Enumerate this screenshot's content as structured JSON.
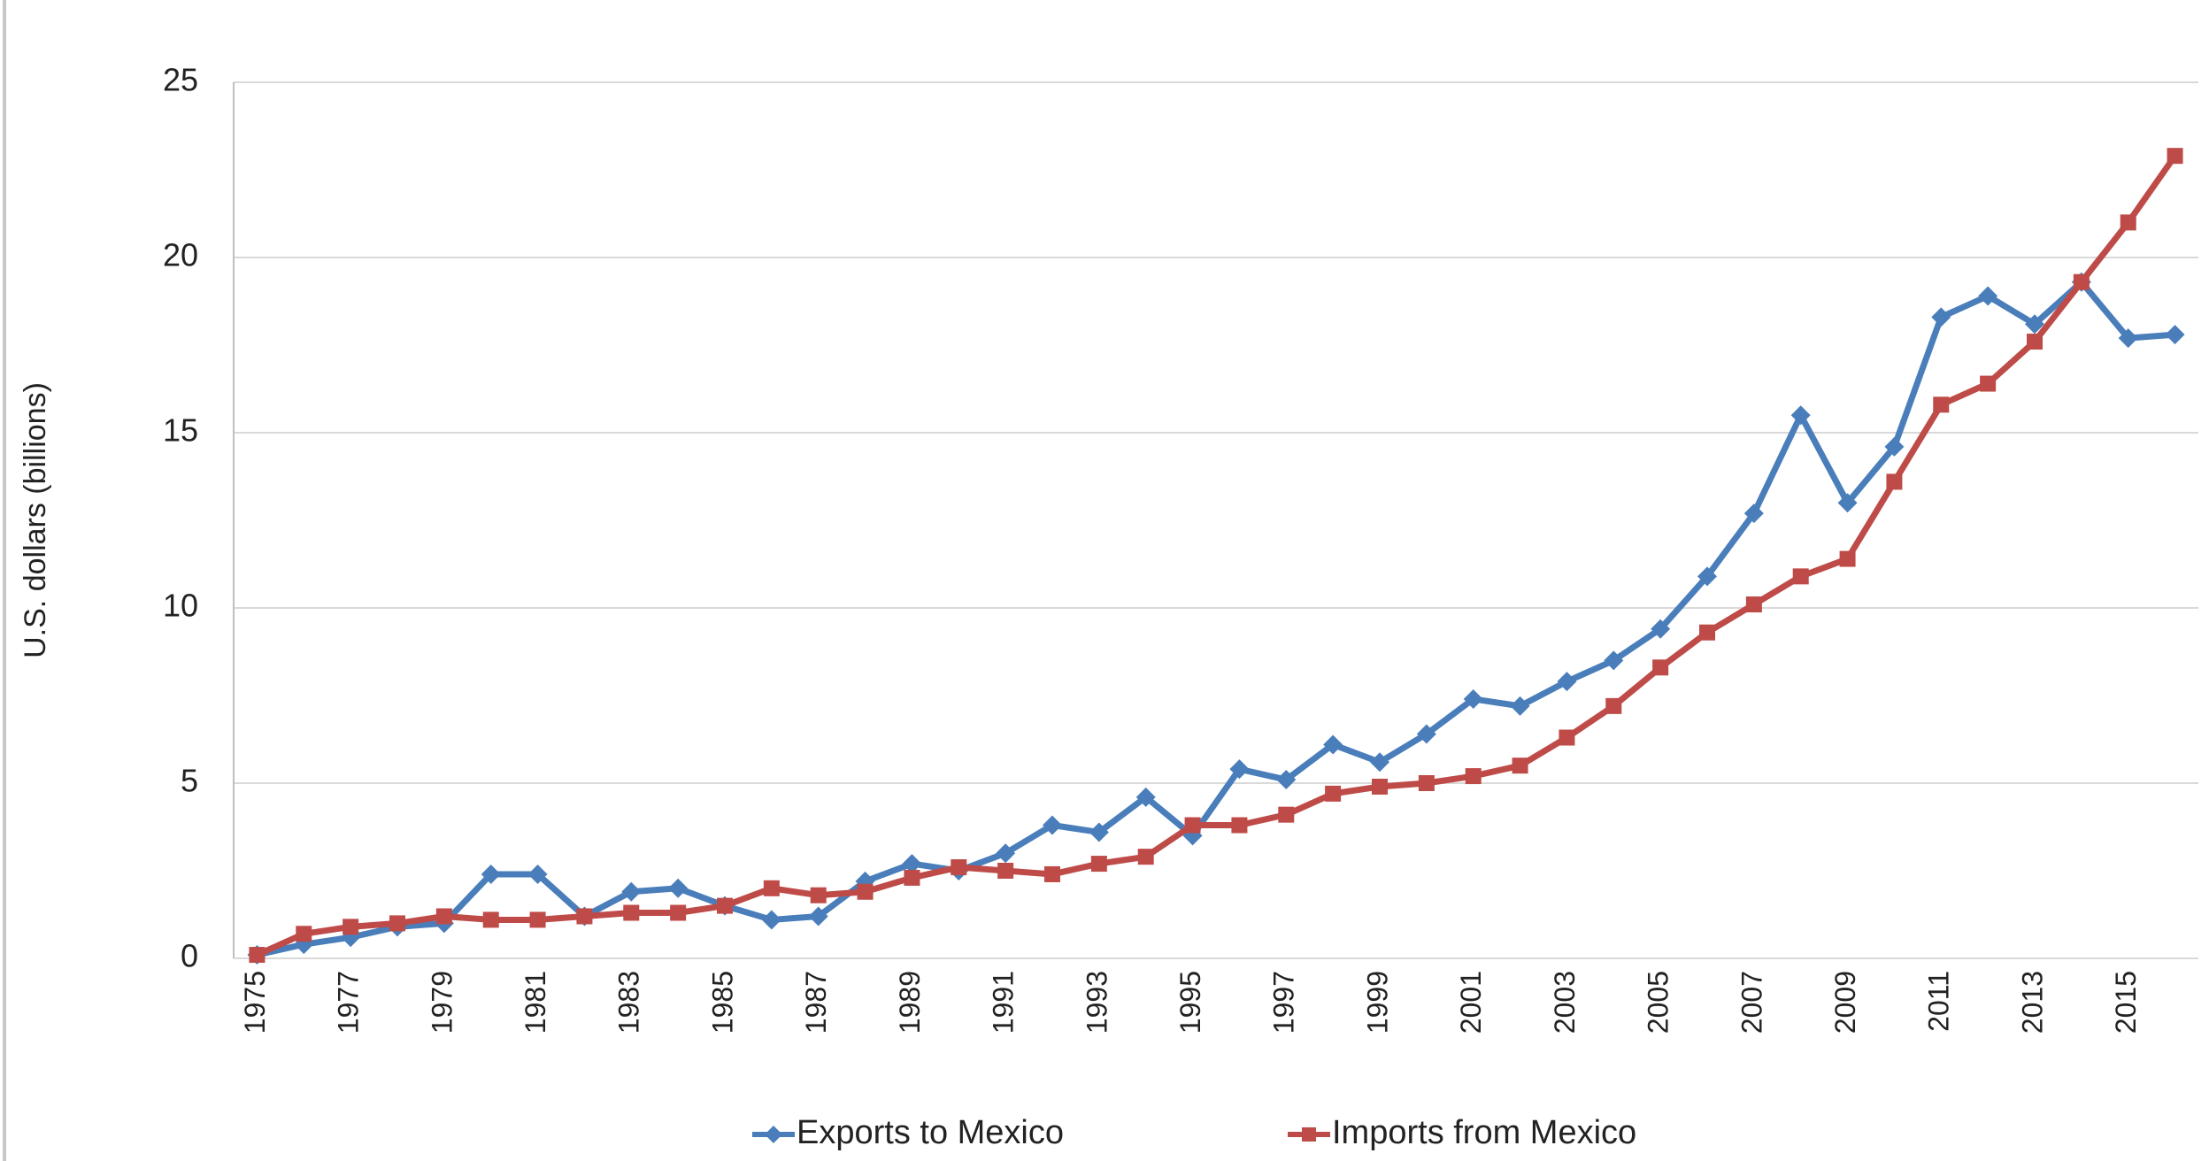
{
  "chart_data": {
    "type": "line",
    "y_label": "U.S. dollars (billions)",
    "categories": [
      "1975",
      null,
      "1977",
      null,
      "1979",
      null,
      "1981",
      null,
      "1983",
      null,
      "1985",
      null,
      "1987",
      null,
      "1989",
      null,
      "1991",
      null,
      "1993",
      null,
      "1995",
      null,
      "1997",
      null,
      "1999",
      null,
      "2001",
      null,
      "2003",
      null,
      "2005",
      null,
      "2007",
      null,
      "2009",
      null,
      "2011",
      null,
      "2013",
      null,
      "2015",
      null
    ],
    "series": [
      {
        "name": "Exports to Mexico",
        "color": "#4a7ebb",
        "marker": "diamond",
        "values": [
          0.1,
          0.4,
          0.6,
          0.9,
          1.0,
          2.4,
          2.4,
          1.2,
          1.9,
          2.0,
          1.5,
          1.1,
          1.2,
          2.2,
          2.7,
          2.5,
          3.0,
          3.8,
          3.6,
          4.6,
          3.5,
          5.4,
          5.1,
          6.1,
          5.6,
          6.4,
          7.4,
          7.2,
          7.9,
          8.5,
          9.4,
          10.9,
          12.7,
          15.5,
          13.0,
          14.6,
          18.3,
          18.9,
          18.1,
          19.3,
          17.7,
          17.8
        ]
      },
      {
        "name": "Imports from Mexico",
        "color": "#be4b48",
        "marker": "square",
        "values": [
          0.1,
          0.7,
          0.9,
          1.0,
          1.2,
          1.1,
          1.1,
          1.2,
          1.3,
          1.3,
          1.5,
          2.0,
          1.8,
          1.9,
          2.3,
          2.6,
          2.5,
          2.4,
          2.7,
          2.9,
          3.8,
          3.8,
          4.1,
          4.7,
          4.9,
          5.0,
          5.2,
          5.5,
          6.3,
          7.2,
          8.3,
          9.3,
          10.1,
          10.9,
          11.4,
          13.6,
          15.8,
          16.4,
          17.6,
          19.3,
          21.0,
          22.9
        ]
      }
    ],
    "ylim": [
      0,
      25
    ],
    "yticks": [
      0,
      5,
      10,
      15,
      20,
      25
    ],
    "grid": true,
    "legend": "bottom"
  }
}
